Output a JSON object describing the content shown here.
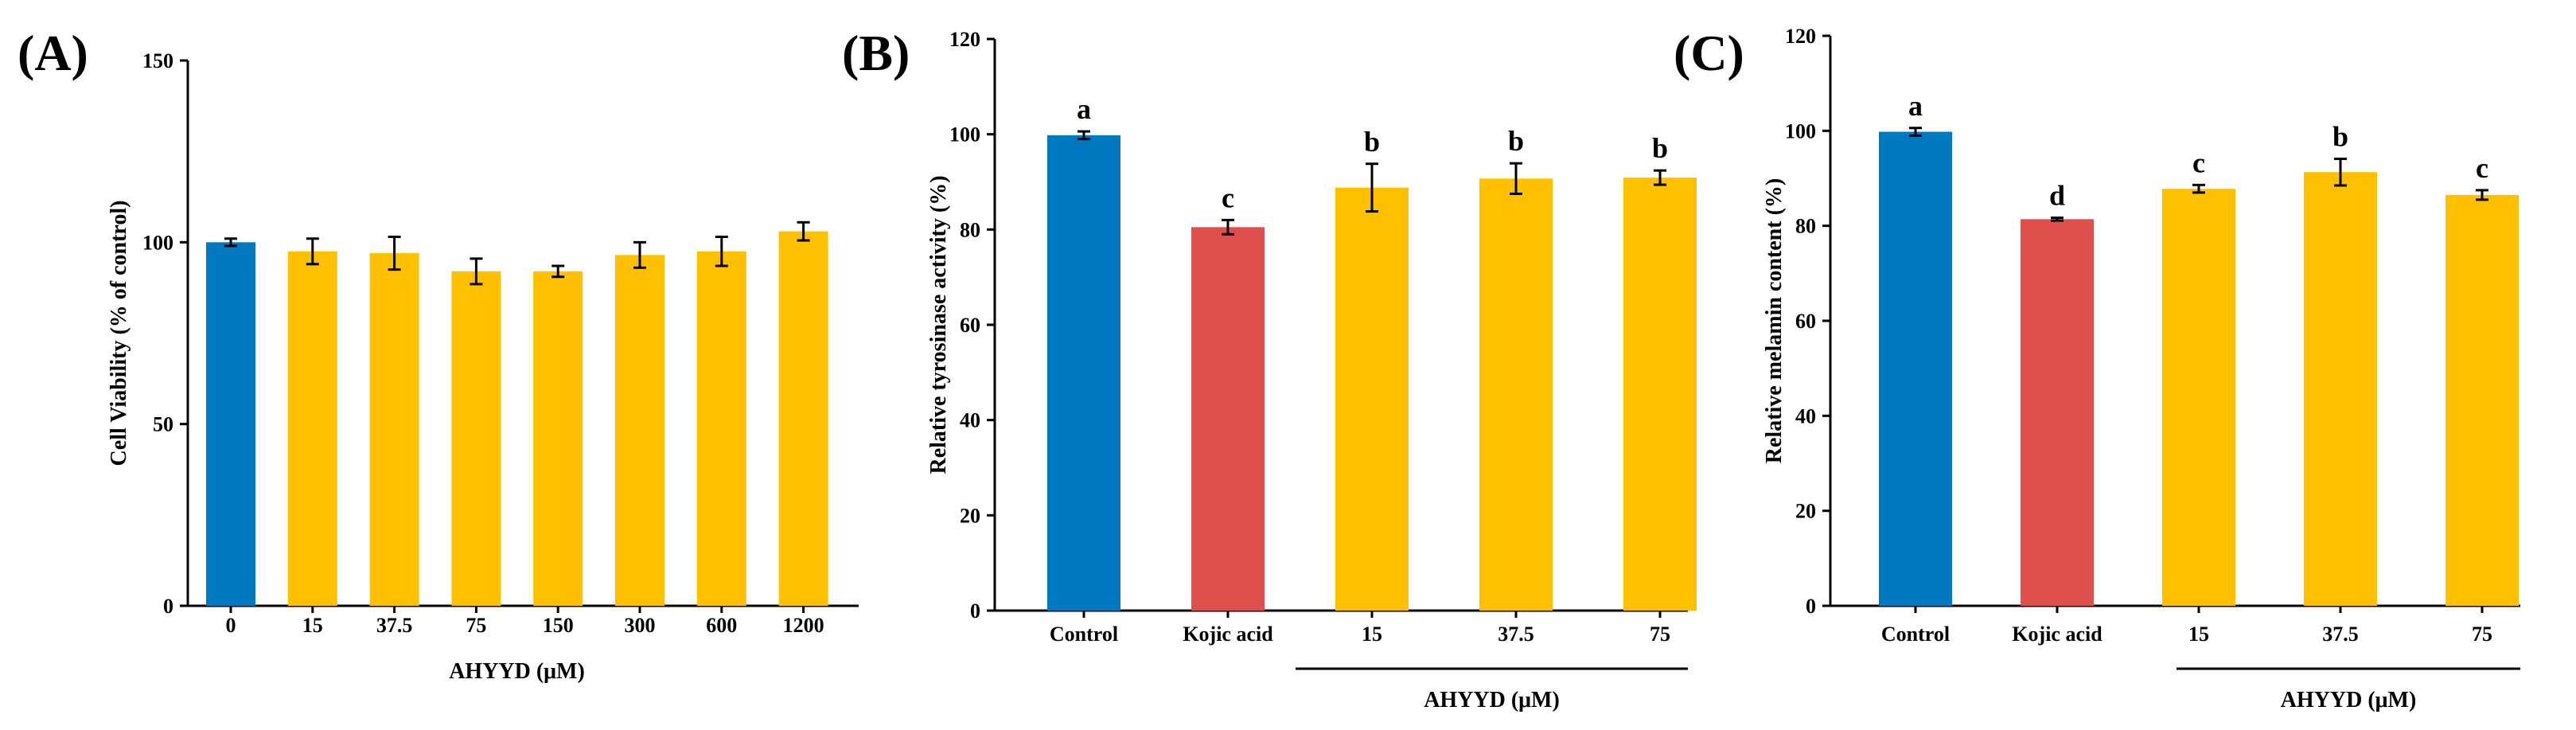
{
  "chart_data": [
    {
      "type": "bar",
      "panel_label": "(A)",
      "categories": [
        "0",
        "15",
        "37.5",
        "75",
        "150",
        "300",
        "600",
        "1200"
      ],
      "values": [
        100,
        97.5,
        97,
        92,
        92,
        96.5,
        97.5,
        103
      ],
      "errors": [
        1,
        3.5,
        4.5,
        3.5,
        1.5,
        3.5,
        4,
        2.5
      ],
      "colors": [
        "#0079C1",
        "#FFC000",
        "#FFC000",
        "#FFC000",
        "#FFC000",
        "#FFC000",
        "#FFC000",
        "#FFC000"
      ],
      "letters": [
        "",
        "",
        "",
        "",
        "",
        "",
        "",
        ""
      ],
      "xlabel": "AHYYD (μM)",
      "ylabel": "Cell Viability (% of control)",
      "ylim": [
        0,
        150
      ],
      "yticks": [
        "0",
        "50",
        "100",
        "150"
      ],
      "group_label": ""
    },
    {
      "type": "bar",
      "panel_label": "(B)",
      "categories": [
        "Control",
        "Kojic acid",
        "15",
        "37.5",
        "75"
      ],
      "values": [
        99.8,
        80.5,
        88.8,
        90.7,
        90.9
      ],
      "errors": [
        0.8,
        1.5,
        5,
        3.2,
        1.5
      ],
      "colors": [
        "#0079C1",
        "#DF4F4B",
        "#FFC000",
        "#FFC000",
        "#FFC000"
      ],
      "letters": [
        "a",
        "c",
        "b",
        "b",
        "b"
      ],
      "xlabel": "",
      "ylabel": "Relative tyrosinase activity (%)",
      "ylim": [
        0,
        120
      ],
      "yticks": [
        "0",
        "20",
        "40",
        "60",
        "80",
        "100",
        "120"
      ],
      "group_label": "AHYYD (μM)"
    },
    {
      "type": "bar",
      "panel_label": "(C)",
      "categories": [
        "Control",
        "Kojic acid",
        "15",
        "37.5",
        "75"
      ],
      "values": [
        99.8,
        81.4,
        87.8,
        91.3,
        86.5
      ],
      "errors": [
        0.8,
        0.3,
        0.8,
        2.8,
        1
      ],
      "colors": [
        "#0079C1",
        "#DF4F4B",
        "#FFC000",
        "#FFC000",
        "#FFC000"
      ],
      "letters": [
        "a",
        "d",
        "c",
        "b",
        "c"
      ],
      "xlabel": "",
      "ylabel": "Relative melamin content (%)",
      "ylim": [
        0,
        120
      ],
      "yticks": [
        "0",
        "20",
        "40",
        "60",
        "80",
        "100",
        "120"
      ],
      "group_label": "AHYYD (μM)"
    }
  ]
}
